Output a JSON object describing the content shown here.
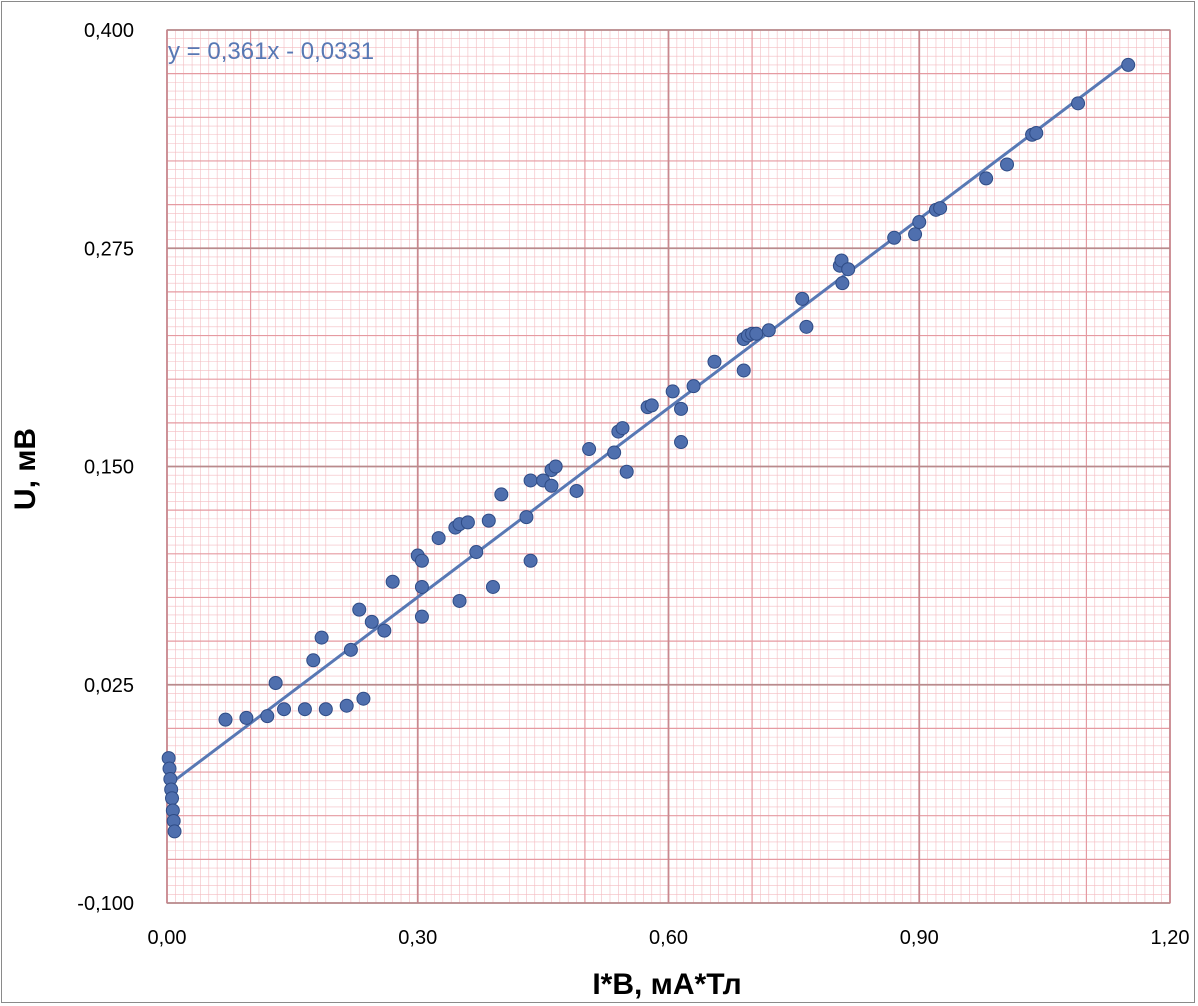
{
  "chart_data": {
    "type": "scatter",
    "title": "",
    "xlabel": "I*B, мА*Тл",
    "ylabel": "U, мВ",
    "xlim": [
      0,
      1.2
    ],
    "ylim": [
      -0.1,
      0.4
    ],
    "xticks": [
      0,
      0.3,
      0.6,
      0.9,
      1.2
    ],
    "xtick_labels": [
      "0,00",
      "0,30",
      "0,60",
      "0,90",
      "1,20"
    ],
    "yticks": [
      -0.1,
      0.025,
      0.15,
      0.275,
      0.4
    ],
    "ytick_labels": [
      "-0,100",
      "0,025",
      "0,150",
      "0,275",
      "0,400"
    ],
    "grid": true,
    "legend": "none",
    "colors": {
      "points": "#4f6fae",
      "point_edge": "#2f4c86",
      "trendline": "#5878b4",
      "grid_major": "#c9888e",
      "grid_minor": "#f2b5ba"
    },
    "trendline": {
      "slope": 0.361,
      "intercept": -0.0331,
      "equation": "y = 0,361x - 0,0331",
      "x_range": [
        0,
        1.15
      ]
    },
    "points": [
      [
        0.002,
        -0.017
      ],
      [
        0.003,
        -0.023
      ],
      [
        0.004,
        -0.029
      ],
      [
        0.005,
        -0.035
      ],
      [
        0.006,
        -0.04
      ],
      [
        0.007,
        -0.047
      ],
      [
        0.008,
        -0.053
      ],
      [
        0.009,
        -0.059
      ],
      [
        0.07,
        0.005
      ],
      [
        0.095,
        0.006
      ],
      [
        0.12,
        0.007
      ],
      [
        0.14,
        0.011
      ],
      [
        0.165,
        0.011
      ],
      [
        0.19,
        0.011
      ],
      [
        0.215,
        0.013
      ],
      [
        0.235,
        0.017
      ],
      [
        0.13,
        0.026
      ],
      [
        0.175,
        0.039
      ],
      [
        0.185,
        0.052
      ],
      [
        0.22,
        0.045
      ],
      [
        0.23,
        0.068
      ],
      [
        0.245,
        0.061
      ],
      [
        0.26,
        0.056
      ],
      [
        0.27,
        0.084
      ],
      [
        0.3,
        0.099
      ],
      [
        0.305,
        0.096
      ],
      [
        0.305,
        0.081
      ],
      [
        0.305,
        0.064
      ],
      [
        0.325,
        0.109
      ],
      [
        0.345,
        0.115
      ],
      [
        0.35,
        0.117
      ],
      [
        0.36,
        0.118
      ],
      [
        0.35,
        0.073
      ],
      [
        0.37,
        0.101
      ],
      [
        0.385,
        0.119
      ],
      [
        0.39,
        0.081
      ],
      [
        0.4,
        0.134
      ],
      [
        0.43,
        0.121
      ],
      [
        0.435,
        0.142
      ],
      [
        0.435,
        0.096
      ],
      [
        0.45,
        0.142
      ],
      [
        0.46,
        0.139
      ],
      [
        0.46,
        0.148
      ],
      [
        0.465,
        0.15
      ],
      [
        0.49,
        0.136
      ],
      [
        0.505,
        0.16
      ],
      [
        0.535,
        0.158
      ],
      [
        0.54,
        0.17
      ],
      [
        0.545,
        0.172
      ],
      [
        0.55,
        0.147
      ],
      [
        0.575,
        0.184
      ],
      [
        0.58,
        0.185
      ],
      [
        0.605,
        0.193
      ],
      [
        0.615,
        0.183
      ],
      [
        0.615,
        0.164
      ],
      [
        0.63,
        0.196
      ],
      [
        0.655,
        0.21
      ],
      [
        0.69,
        0.223
      ],
      [
        0.69,
        0.205
      ],
      [
        0.695,
        0.225
      ],
      [
        0.7,
        0.226
      ],
      [
        0.705,
        0.226
      ],
      [
        0.72,
        0.228
      ],
      [
        0.76,
        0.246
      ],
      [
        0.765,
        0.23
      ],
      [
        0.805,
        0.265
      ],
      [
        0.807,
        0.268
      ],
      [
        0.808,
        0.255
      ],
      [
        0.815,
        0.263
      ],
      [
        0.87,
        0.281
      ],
      [
        0.895,
        0.283
      ],
      [
        0.9,
        0.29
      ],
      [
        0.92,
        0.297
      ],
      [
        0.925,
        0.298
      ],
      [
        0.98,
        0.315
      ],
      [
        1.005,
        0.323
      ],
      [
        1.035,
        0.34
      ],
      [
        1.04,
        0.341
      ],
      [
        1.09,
        0.358
      ],
      [
        1.15,
        0.38
      ]
    ]
  }
}
